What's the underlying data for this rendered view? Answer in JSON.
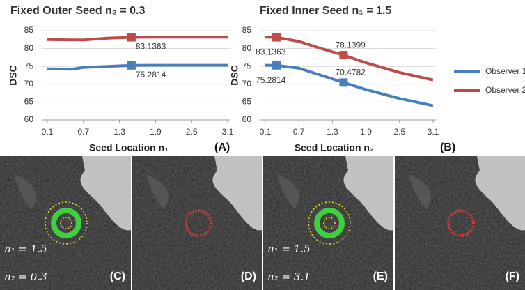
{
  "chart_data": [
    {
      "type": "line",
      "title": "Fixed Outer Seed n₂ = 0.3",
      "x_label": "Seed Location n₁",
      "y_label": "DSC",
      "panel": "(A)",
      "x": [
        0.1,
        0.5,
        0.7,
        1.1,
        1.5,
        1.9,
        2.5,
        3.1
      ],
      "series": [
        {
          "name": "Observer 1",
          "color": "#4a7ebb",
          "values": [
            74.3,
            74.2,
            74.7,
            75.0,
            75.2814,
            75.3,
            75.3,
            75.3
          ],
          "value_labels": [
            null,
            null,
            null,
            null,
            "75.2814",
            null,
            null,
            null
          ]
        },
        {
          "name": "Observer 2",
          "color": "#be4b48",
          "values": [
            82.5,
            82.4,
            82.4,
            82.9,
            83.1363,
            83.2,
            83.2,
            83.2
          ],
          "value_labels": [
            null,
            null,
            null,
            null,
            "83.1363",
            null,
            null,
            null
          ]
        }
      ],
      "xlim": [
        0.1,
        3.1
      ],
      "xticks": [
        0.1,
        0.7,
        1.3,
        1.9,
        2.5,
        3.1
      ],
      "ylim": [
        60,
        85
      ],
      "yticks": [
        60,
        65,
        70,
        75,
        80,
        85
      ],
      "grid": true,
      "legend": false
    },
    {
      "type": "line",
      "title": "Fixed Inner Seed n₁ = 1.5",
      "x_label": "Seed Location n₂",
      "y_label": "DSC",
      "panel": "(B)",
      "x": [
        0.1,
        0.3,
        0.7,
        1.1,
        1.5,
        1.9,
        2.5,
        3.1
      ],
      "series": [
        {
          "name": "Observer 1",
          "color": "#4a7ebb",
          "values": [
            75.3,
            75.2814,
            74.5,
            72.5,
            70.4782,
            68.5,
            66.0,
            64.0
          ],
          "value_labels": [
            null,
            "75.2814",
            null,
            null,
            "70.4782",
            null,
            null,
            null
          ]
        },
        {
          "name": "Observer 2",
          "color": "#be4b48",
          "values": [
            83.2,
            83.1363,
            82.0,
            80.0,
            78.1399,
            76.0,
            73.3,
            71.2
          ],
          "value_labels": [
            null,
            "83.1363",
            null,
            null,
            "78.1399",
            null,
            null,
            null
          ]
        }
      ],
      "xlim": [
        0.1,
        3.1
      ],
      "xticks": [
        0.1,
        0.7,
        1.3,
        1.9,
        2.5,
        3.1
      ],
      "ylim": [
        60,
        85
      ],
      "yticks": [
        60,
        65,
        70,
        75,
        80,
        85
      ],
      "grid": true,
      "legend": "right"
    }
  ],
  "images": [
    {
      "label": "(C)",
      "notes": [
        "n₁ = 1.5",
        "n₂ = 0.3"
      ]
    },
    {
      "label": "(D)",
      "notes": []
    },
    {
      "label": "(E)",
      "notes": [
        "n₁ = 1.5",
        "n₂ = 3.1"
      ]
    },
    {
      "label": "(F)",
      "notes": []
    }
  ]
}
